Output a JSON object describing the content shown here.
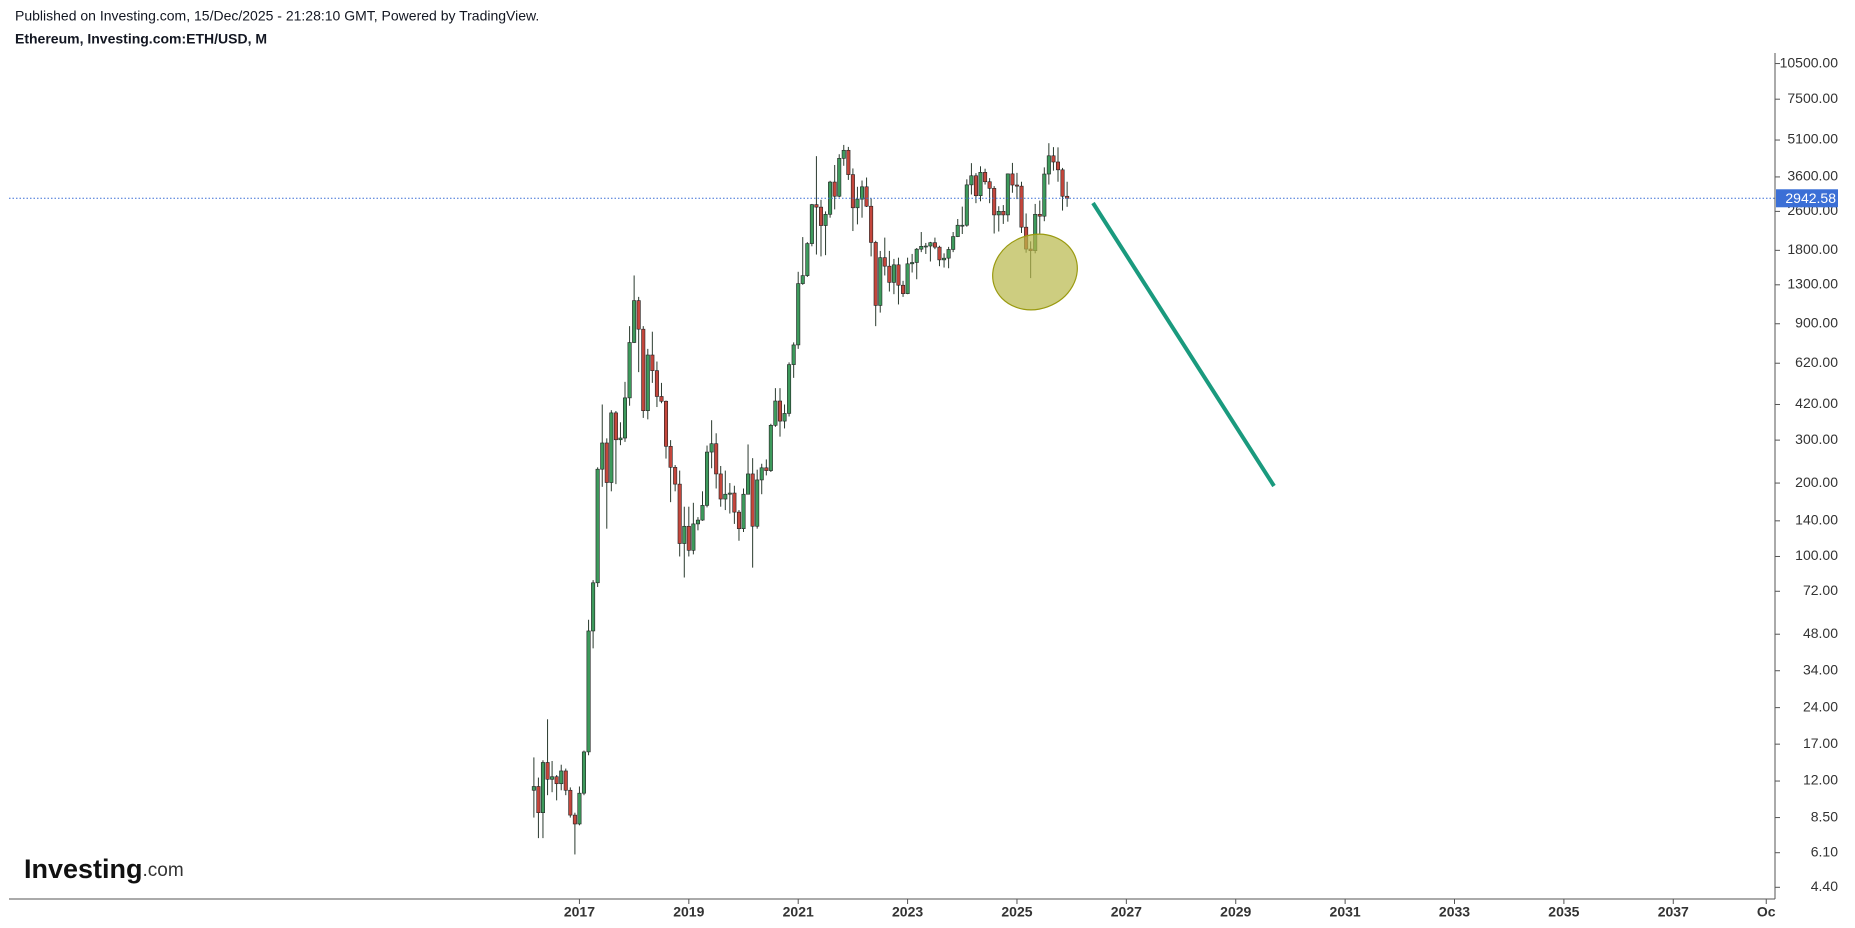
{
  "header": {
    "published": "Published on Investing.com, 15/Dec/2025 - 21:28:10 GMT, Powered by TradingView.",
    "symbol": "Ethereum, Investing.com:ETH/USD, M"
  },
  "logo": {
    "brand": "Investing",
    "suffix": ".com"
  },
  "chart_data": {
    "type": "candlestick",
    "log_scale": true,
    "grid": false,
    "up_color": "#3d9a5c",
    "down_color": "#c4463c",
    "price_line_color": "#3b6fd6",
    "xlim": [
      2006.57,
      2038.86
    ],
    "ylim": [
      3.94,
      11600
    ],
    "xticks": [
      2017,
      2019,
      2021,
      2023,
      2025,
      2027,
      2029,
      2031,
      2033,
      2035,
      2037,
      {
        "value": 2038.7,
        "label": "Oc"
      }
    ],
    "yticks": [
      {
        "value": 10500,
        "label": "10500.00"
      },
      {
        "value": 7500,
        "label": "7500.00"
      },
      {
        "value": 5100,
        "label": "5100.00"
      },
      {
        "value": 3600,
        "label": "3600.00"
      },
      {
        "value": 2600,
        "label": "2600.00"
      },
      {
        "value": 1800,
        "label": "1800.00"
      },
      {
        "value": 1300,
        "label": "1300.00"
      },
      {
        "value": 900,
        "label": "900.00"
      },
      {
        "value": 620,
        "label": "620.00"
      },
      {
        "value": 420,
        "label": "420.00"
      },
      {
        "value": 300,
        "label": "300.00"
      },
      {
        "value": 200,
        "label": "200.00"
      },
      {
        "value": 140,
        "label": "140.00"
      },
      {
        "value": 100,
        "label": "100.00"
      },
      {
        "value": 72,
        "label": "72.00"
      },
      {
        "value": 48,
        "label": "48.00"
      },
      {
        "value": 34,
        "label": "34.00"
      },
      {
        "value": 24,
        "label": "24.00"
      },
      {
        "value": 17,
        "label": "17.00"
      },
      {
        "value": 12,
        "label": "12.00"
      },
      {
        "value": 8.5,
        "label": "8.50"
      },
      {
        "value": 6.1,
        "label": "6.10"
      },
      {
        "value": 4.4,
        "label": "4.40"
      }
    ],
    "x": [
      2016.167,
      2016.25,
      2016.333,
      2016.417,
      2016.5,
      2016.583,
      2016.667,
      2016.75,
      2016.833,
      2016.917,
      2017,
      2017.083,
      2017.167,
      2017.25,
      2017.333,
      2017.417,
      2017.5,
      2017.583,
      2017.667,
      2017.75,
      2017.833,
      2017.917,
      2018,
      2018.083,
      2018.167,
      2018.25,
      2018.333,
      2018.417,
      2018.5,
      2018.583,
      2018.667,
      2018.75,
      2018.833,
      2018.917,
      2019,
      2019.083,
      2019.167,
      2019.25,
      2019.333,
      2019.417,
      2019.5,
      2019.583,
      2019.667,
      2019.75,
      2019.833,
      2019.917,
      2020,
      2020.083,
      2020.167,
      2020.25,
      2020.333,
      2020.417,
      2020.5,
      2020.583,
      2020.667,
      2020.75,
      2020.833,
      2020.917,
      2021,
      2021.083,
      2021.167,
      2021.25,
      2021.333,
      2021.417,
      2021.5,
      2021.583,
      2021.667,
      2021.75,
      2021.833,
      2021.917,
      2022,
      2022.083,
      2022.167,
      2022.25,
      2022.333,
      2022.417,
      2022.5,
      2022.583,
      2022.667,
      2022.75,
      2022.833,
      2022.917,
      2023,
      2023.083,
      2023.167,
      2023.25,
      2023.333,
      2023.417,
      2023.5,
      2023.583,
      2023.667,
      2023.75,
      2023.833,
      2023.917,
      2024,
      2024.083,
      2024.167,
      2024.25,
      2024.333,
      2024.417,
      2024.5,
      2024.583,
      2024.667,
      2024.75,
      2024.833,
      2024.917,
      2025,
      2025.083,
      2025.167,
      2025.25,
      2025.333,
      2025.417,
      2025.5,
      2025.583,
      2025.667,
      2025.75,
      2025.833,
      2025.917
    ],
    "open": [
      11.0,
      11.4,
      8.9,
      14.3,
      12.2,
      12.5,
      11.7,
      13.2,
      11.0,
      8.7,
      8.0,
      10.7,
      15.8,
      49.5,
      78,
      228,
      292,
      201,
      388,
      301,
      306,
      447,
      754,
      1120,
      855,
      396,
      670,
      578,
      453,
      433,
      283,
      232,
      198,
      113,
      133,
      106,
      136,
      141,
      162,
      268,
      290,
      218,
      172,
      180,
      182,
      152,
      130,
      180,
      218,
      133,
      206,
      231,
      225,
      345,
      434,
      359,
      386,
      612,
      737,
      1315,
      1418,
      1919,
      2772,
      2707,
      2275,
      2530,
      3430,
      3000,
      4290,
      4630,
      3680,
      2690,
      2920,
      3280,
      2730,
      1940,
      1070,
      1680,
      1550,
      1330,
      1570,
      1295,
      1196,
      1585,
      1605,
      1820,
      1870,
      1875,
      1935,
      1855,
      1645,
      1672,
      1815,
      2050,
      2282,
      2282,
      3340,
      3640,
      3015,
      3760,
      3440,
      3232,
      2515,
      2602,
      2515,
      3705,
      3335,
      3300,
      2240,
      1822,
      1794,
      2530,
      2485,
      3700,
      4395,
      4145,
      3850,
      3000
    ],
    "high": [
      15.0,
      12.4,
      14.6,
      21.5,
      14.5,
      12.7,
      14.0,
      13.5,
      11.3,
      8.9,
      11.4,
      16.0,
      55,
      80,
      232,
      420,
      305,
      398,
      395,
      355,
      520,
      880,
      1420,
      1160,
      880,
      710,
      835,
      630,
      515,
      436,
      300,
      237,
      225,
      160,
      160,
      166,
      145,
      185,
      285,
      362,
      320,
      235,
      225,
      200,
      195,
      155,
      190,
      288,
      253,
      227,
      240,
      250,
      350,
      490,
      490,
      420,
      625,
      755,
      1470,
      2040,
      1945,
      2790,
      4380,
      2900,
      2600,
      3470,
      4030,
      4460,
      4870,
      4780,
      3900,
      3280,
      3480,
      3580,
      2950,
      1970,
      1790,
      2030,
      1790,
      1660,
      1680,
      1350,
      1680,
      1740,
      1840,
      2140,
      1930,
      1950,
      2030,
      1880,
      1750,
      1860,
      2140,
      2420,
      2720,
      3520,
      4100,
      3730,
      3980,
      3890,
      3560,
      3300,
      2730,
      2760,
      3720,
      4110,
      3740,
      3440,
      2550,
      1960,
      2790,
      2880,
      3940,
      4950,
      4770,
      4760,
      3920,
      3440
    ],
    "low": [
      8.5,
      7.0,
      7.0,
      10.5,
      10.8,
      10.0,
      11.0,
      10.5,
      8.5,
      6.0,
      7.9,
      10.5,
      15.3,
      42,
      75,
      193,
      130,
      185,
      198,
      286,
      295,
      415,
      750,
      570,
      370,
      365,
      515,
      410,
      425,
      252,
      167,
      185,
      100,
      82,
      100,
      102,
      128,
      140,
      159,
      230,
      190,
      160,
      155,
      150,
      136,
      116,
      126,
      180,
      90,
      130,
      180,
      215,
      222,
      340,
      310,
      335,
      375,
      540,
      710,
      1300,
      1400,
      1870,
      1730,
      1700,
      1720,
      2450,
      2650,
      2970,
      4000,
      3500,
      2160,
      2300,
      2450,
      2710,
      1700,
      880,
      1000,
      1420,
      1220,
      1190,
      1080,
      1160,
      1190,
      1460,
      1370,
      1770,
      1740,
      1620,
      1820,
      1550,
      1530,
      1520,
      1770,
      2040,
      2100,
      2250,
      3050,
      2810,
      2860,
      3350,
      2810,
      2110,
      2150,
      2310,
      2360,
      3100,
      2920,
      2120,
      1760,
      1385,
      1750,
      2110,
      2370,
      3350,
      3820,
      3440,
      2620,
      2715
    ],
    "close": [
      11.4,
      8.9,
      14.3,
      12.2,
      12.5,
      11.7,
      13.2,
      11.0,
      8.7,
      8.0,
      10.7,
      15.8,
      49.5,
      78,
      228,
      292,
      201,
      388,
      301,
      306,
      447,
      754,
      1120,
      855,
      396,
      670,
      578,
      453,
      433,
      283,
      232,
      198,
      113,
      133,
      106,
      136,
      141,
      162,
      268,
      290,
      218,
      172,
      180,
      182,
      152,
      130,
      180,
      218,
      133,
      206,
      231,
      225,
      345,
      434,
      359,
      386,
      612,
      737,
      1315,
      1418,
      1919,
      2772,
      2707,
      2275,
      2530,
      3430,
      3000,
      4290,
      4630,
      3680,
      2690,
      2920,
      3280,
      2730,
      1940,
      1070,
      1680,
      1550,
      1330,
      1570,
      1295,
      1196,
      1585,
      1605,
      1820,
      1870,
      1875,
      1935,
      1855,
      1645,
      1672,
      1815,
      2050,
      2282,
      2282,
      3340,
      3640,
      3015,
      3760,
      3440,
      3232,
      2515,
      2602,
      2515,
      3705,
      3335,
      3300,
      2240,
      1822,
      1794,
      2530,
      2485,
      3700,
      4395,
      4145,
      3850,
      3000,
      2942.58
    ]
  }
}
